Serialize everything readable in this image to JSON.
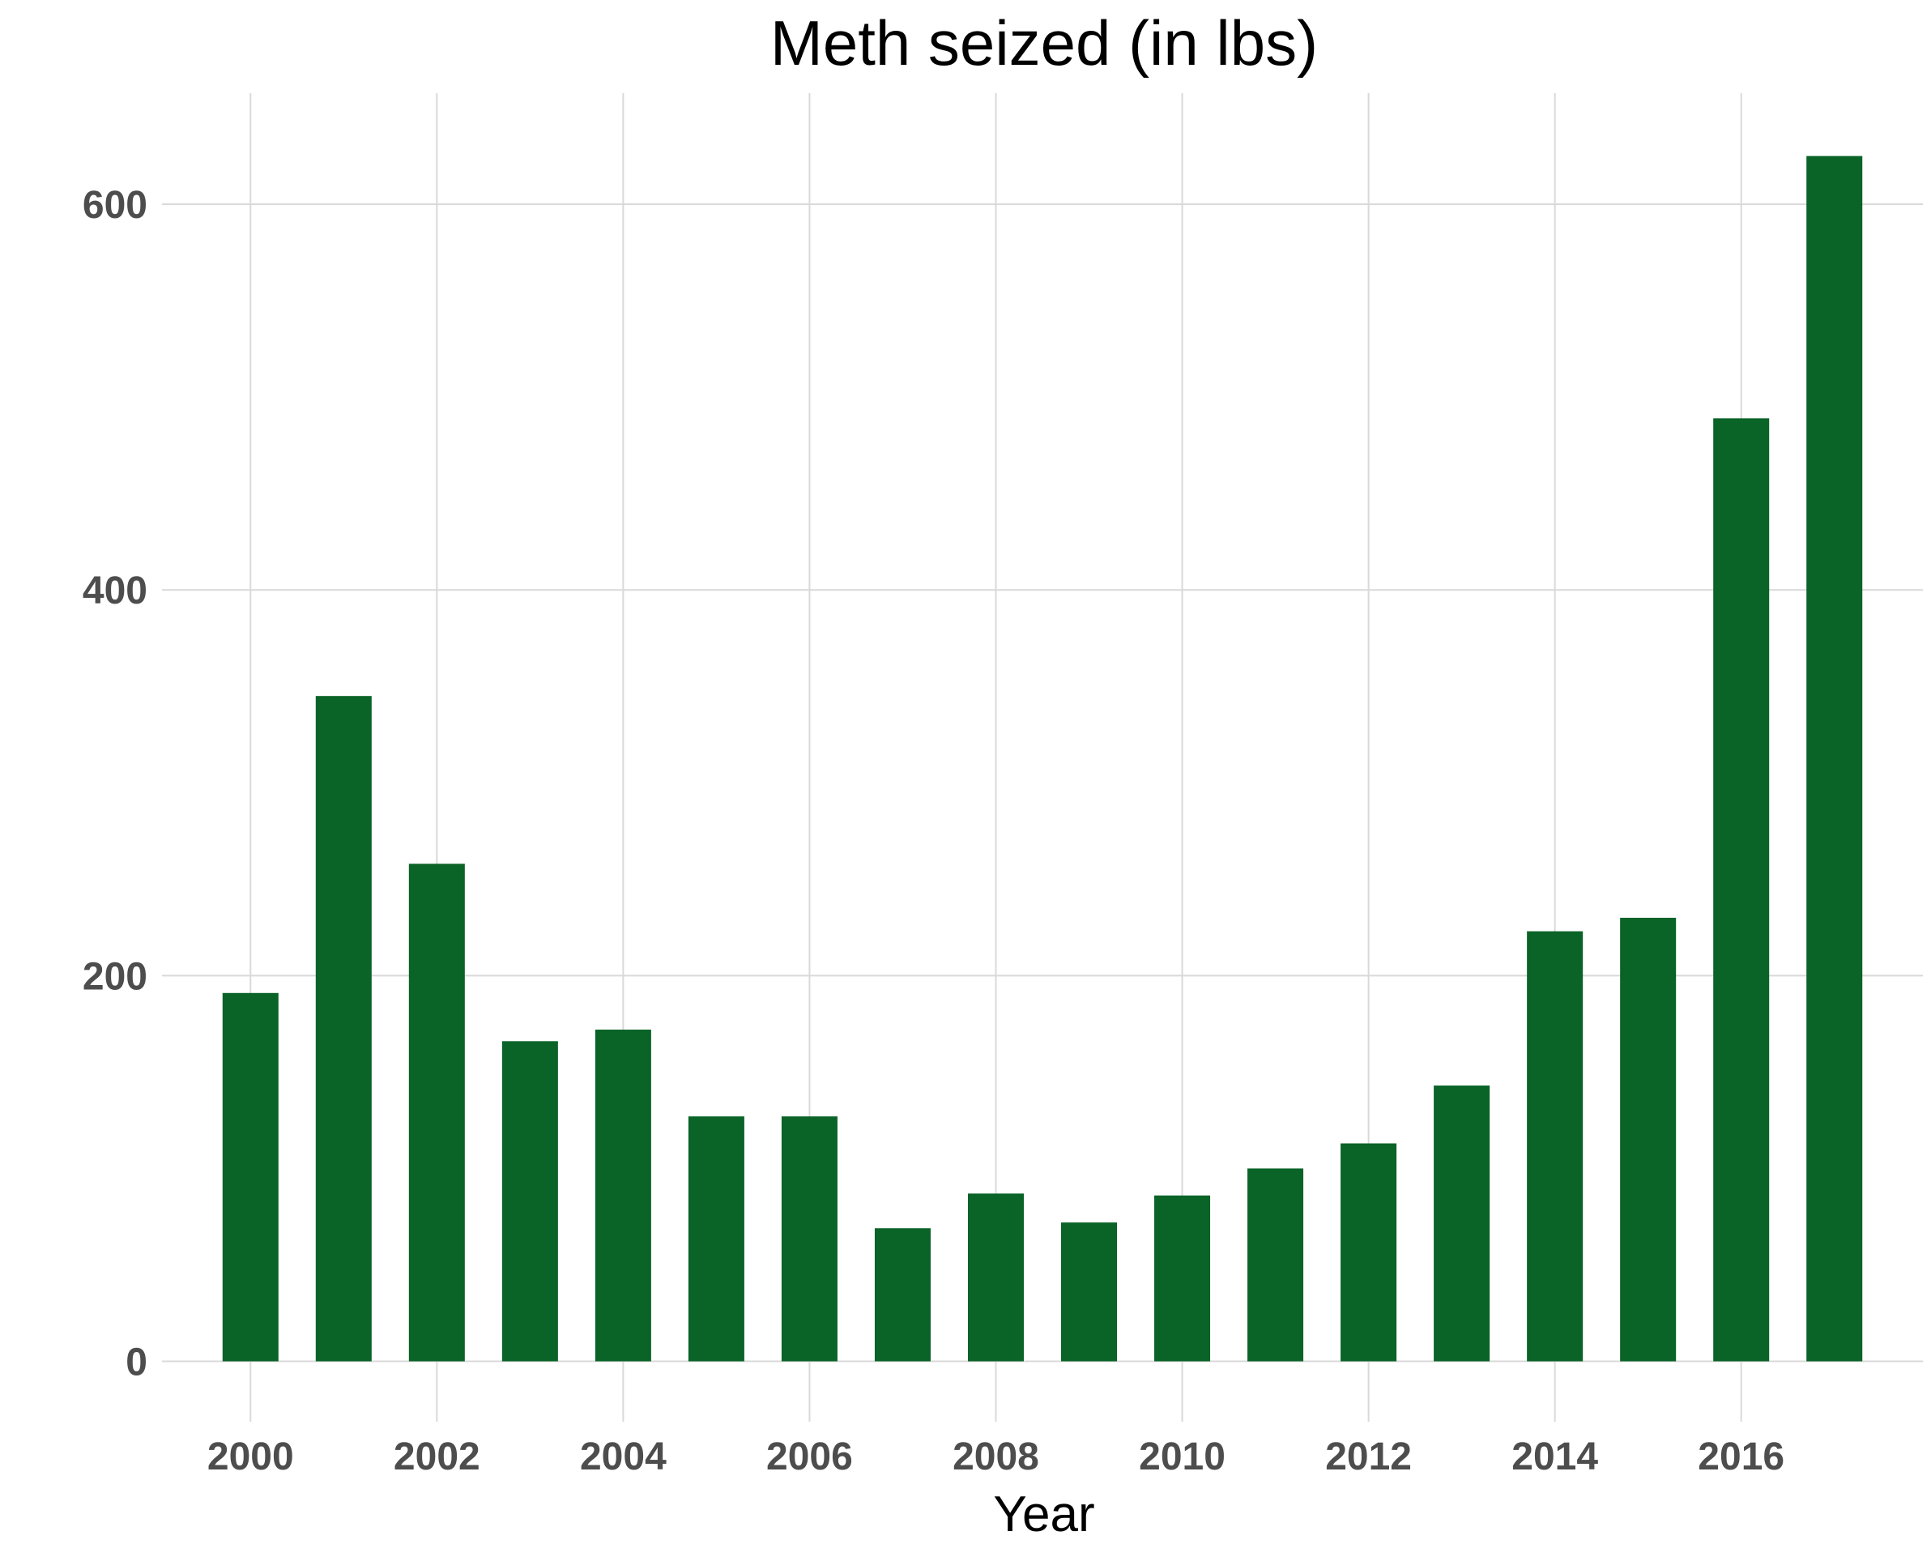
{
  "chart_data": {
    "type": "bar",
    "title": "Meth seized (in lbs)",
    "xlabel": "Year",
    "ylabel": "",
    "x": [
      2000,
      2001,
      2002,
      2003,
      2004,
      2005,
      2006,
      2007,
      2008,
      2009,
      2010,
      2011,
      2012,
      2013,
      2014,
      2015,
      2016,
      2017
    ],
    "values": [
      191,
      345,
      258,
      166,
      172,
      127,
      127,
      69,
      87,
      72,
      86,
      100,
      113,
      143,
      223,
      230,
      489,
      625
    ],
    "xticks": [
      "2000",
      "2002",
      "2004",
      "2006",
      "2008",
      "2010",
      "2012",
      "2014",
      "2016"
    ],
    "yticks": [
      "0",
      "200",
      "400",
      "600"
    ],
    "xlim": [
      1999.05,
      2017.95
    ],
    "ylim": [
      -31.3,
      657.6
    ],
    "grid": true,
    "legend": "none",
    "bar_color": "#0a6327"
  }
}
